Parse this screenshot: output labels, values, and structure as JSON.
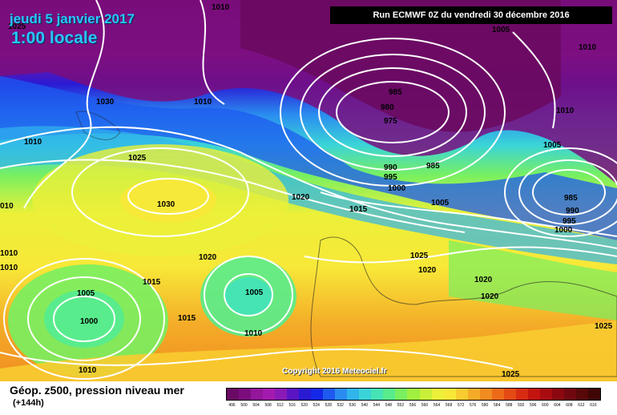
{
  "header": {
    "date": "jeudi 5 janvier 2017",
    "time": "1:00 locale",
    "run": "Run ECMWF 0Z du vendredi 30 décembre 2016"
  },
  "footer": {
    "field": "Géop. z500, pression niveau mer",
    "lead": "(+144h)",
    "copyright": "Copyright 2016 Meteociel.fr"
  },
  "legend": {
    "values": [
      "496",
      "500",
      "504",
      "508",
      "512",
      "516",
      "520",
      "524",
      "528",
      "532",
      "536",
      "540",
      "544",
      "548",
      "552",
      "556",
      "560",
      "564",
      "568",
      "572",
      "576",
      "580",
      "584",
      "588",
      "592",
      "596",
      "600",
      "604",
      "608",
      "612",
      "616"
    ],
    "colors": [
      "#6a0a64",
      "#7d0c7d",
      "#93169b",
      "#a31aae",
      "#8a1ab8",
      "#5a14c4",
      "#2a1ad4",
      "#1428e8",
      "#1e5af0",
      "#2a8cf0",
      "#30b4ec",
      "#3ad4d8",
      "#46e4b4",
      "#58ec8c",
      "#78f060",
      "#a0f040",
      "#c8f038",
      "#ecf038",
      "#f8e838",
      "#f8cc30",
      "#f4ac28",
      "#f08c20",
      "#ec6a18",
      "#e44a14",
      "#d82c12",
      "#c41410",
      "#a80c10",
      "#8c0810",
      "#700810",
      "#580808",
      "#400606"
    ]
  },
  "isobars": [
    {
      "label": "1010"
    },
    {
      "label": "1025"
    },
    {
      "label": "1005"
    },
    {
      "label": "1010"
    },
    {
      "label": "1030"
    },
    {
      "label": "1010"
    },
    {
      "label": "985"
    },
    {
      "label": "980"
    },
    {
      "label": "975"
    },
    {
      "label": "1010"
    },
    {
      "label": "1010"
    },
    {
      "label": "1005"
    },
    {
      "label": "1025"
    },
    {
      "label": "990"
    },
    {
      "label": "995"
    },
    {
      "label": "985"
    },
    {
      "label": "1000"
    },
    {
      "label": "985"
    },
    {
      "label": "990"
    },
    {
      "label": "995"
    },
    {
      "label": "1000"
    },
    {
      "label": "1030"
    },
    {
      "label": "1020"
    },
    {
      "label": "1015"
    },
    {
      "label": "1005"
    },
    {
      "label": "1010"
    },
    {
      "label": "1020"
    },
    {
      "label": "1015"
    },
    {
      "label": "1025"
    },
    {
      "label": "1020"
    },
    {
      "label": "1020"
    },
    {
      "label": "1020"
    },
    {
      "label": "1005"
    },
    {
      "label": "1000"
    },
    {
      "label": "1015"
    },
    {
      "label": "1005"
    },
    {
      "label": "1010"
    },
    {
      "label": "1010"
    },
    {
      "label": "1025"
    },
    {
      "label": "1025"
    },
    {
      "label": "1010"
    },
    {
      "label": "010"
    }
  ]
}
